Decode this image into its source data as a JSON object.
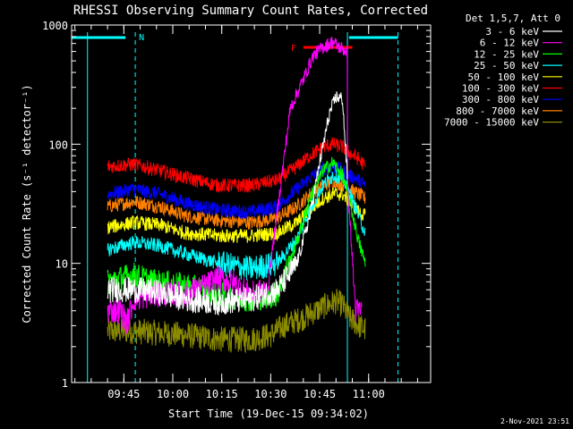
{
  "chart_data": {
    "type": "line",
    "title": "RHESSI Observing Summary Count Rates, Corrected",
    "ylabel": "Corrected Count Rate (s⁻¹ detector⁻¹)",
    "xlabel": "Start Time (19-Dec-15 09:34:02)",
    "yscale": "log",
    "ylim": [
      1,
      1000
    ],
    "xlim_minutes": [
      -5,
      105
    ],
    "y_ticks": [
      {
        "v": 1,
        "label": "1"
      },
      {
        "v": 10,
        "label": "10"
      },
      {
        "v": 100,
        "label": "100"
      },
      {
        "v": 1000,
        "label": "1000"
      }
    ],
    "x_ticks": [
      {
        "m": 11,
        "label": "09:45"
      },
      {
        "m": 26,
        "label": "10:00"
      },
      {
        "m": 41,
        "label": "10:15"
      },
      {
        "m": 56,
        "label": "10:30"
      },
      {
        "m": 71,
        "label": "10:45"
      },
      {
        "m": 86,
        "label": "11:00"
      }
    ],
    "legend_header": "Det 1,5,7, Att 0",
    "legend_position": "top-right",
    "markers": {
      "n_label": "N",
      "f_label": "F",
      "top_bars": [
        [
          -5,
          11.5
        ],
        [
          80,
          95
        ]
      ],
      "n_vline": 14.5,
      "right_vlines": [
        79.5,
        95
      ],
      "f_bar": [
        66,
        81
      ],
      "f_bar_y": 650
    },
    "series": [
      {
        "name": "3 - 6 keV",
        "color": "#ffffff",
        "points": [
          [
            6,
            6
          ],
          [
            14,
            6
          ],
          [
            20,
            5.8
          ],
          [
            30,
            5
          ],
          [
            40,
            4.7
          ],
          [
            50,
            5
          ],
          [
            58,
            6
          ],
          [
            60,
            7
          ],
          [
            64,
            10
          ],
          [
            68,
            25
          ],
          [
            71,
            70
          ],
          [
            74,
            180
          ],
          [
            76,
            250
          ],
          [
            78,
            240
          ],
          [
            79.5,
            50
          ],
          [
            79.5,
            20
          ]
        ]
      },
      {
        "name": "6 - 12 keV",
        "color": "#ff00ff",
        "points": [
          [
            6,
            4
          ],
          [
            10,
            4
          ],
          [
            12,
            3.2
          ],
          [
            14,
            5
          ],
          [
            20,
            5.5
          ],
          [
            30,
            5.5
          ],
          [
            36,
            6.5
          ],
          [
            40,
            7.5
          ],
          [
            45,
            6.8
          ],
          [
            50,
            5.5
          ],
          [
            55,
            6
          ],
          [
            62,
            200
          ],
          [
            66,
            350
          ],
          [
            69,
            550
          ],
          [
            72,
            650
          ],
          [
            75,
            720
          ],
          [
            77,
            650
          ],
          [
            79.5,
            600
          ],
          [
            79.5,
            50
          ],
          [
            82,
            4
          ],
          [
            84,
            4
          ]
        ]
      },
      {
        "name": "12 - 25 keV",
        "color": "#00ff00",
        "points": [
          [
            6,
            7
          ],
          [
            14,
            8
          ],
          [
            20,
            7
          ],
          [
            30,
            6.5
          ],
          [
            40,
            5.5
          ],
          [
            50,
            5
          ],
          [
            58,
            5.5
          ],
          [
            64,
            15
          ],
          [
            68,
            35
          ],
          [
            72,
            60
          ],
          [
            75,
            70
          ],
          [
            78,
            55
          ],
          [
            80,
            35
          ],
          [
            83,
            15
          ],
          [
            85,
            10
          ]
        ]
      },
      {
        "name": "25 - 50 keV",
        "color": "#00ffff",
        "points": [
          [
            6,
            13
          ],
          [
            14,
            15
          ],
          [
            22,
            14
          ],
          [
            30,
            12
          ],
          [
            40,
            10
          ],
          [
            50,
            9
          ],
          [
            58,
            10
          ],
          [
            64,
            16
          ],
          [
            68,
            28
          ],
          [
            72,
            45
          ],
          [
            75,
            55
          ],
          [
            78,
            52
          ],
          [
            80,
            40
          ],
          [
            83,
            25
          ],
          [
            85,
            18
          ]
        ]
      },
      {
        "name": "50 - 100 keV",
        "color": "#ffff00",
        "points": [
          [
            6,
            20
          ],
          [
            14,
            22
          ],
          [
            22,
            21
          ],
          [
            30,
            18
          ],
          [
            40,
            17
          ],
          [
            50,
            17
          ],
          [
            58,
            18
          ],
          [
            64,
            22
          ],
          [
            68,
            28
          ],
          [
            72,
            35
          ],
          [
            75,
            38
          ],
          [
            78,
            38
          ],
          [
            80,
            33
          ],
          [
            83,
            27
          ],
          [
            85,
            25
          ]
        ]
      },
      {
        "name": "100 - 300 keV",
        "color": "#ff0000",
        "points": [
          [
            6,
            65
          ],
          [
            14,
            68
          ],
          [
            22,
            60
          ],
          [
            30,
            52
          ],
          [
            40,
            45
          ],
          [
            50,
            45
          ],
          [
            58,
            50
          ],
          [
            64,
            65
          ],
          [
            68,
            80
          ],
          [
            72,
            95
          ],
          [
            75,
            100
          ],
          [
            78,
            95
          ],
          [
            80,
            85
          ],
          [
            83,
            75
          ],
          [
            85,
            65
          ]
        ]
      },
      {
        "name": "300 - 800 keV",
        "color": "#0000ff",
        "points": [
          [
            6,
            38
          ],
          [
            14,
            42
          ],
          [
            22,
            38
          ],
          [
            30,
            32
          ],
          [
            40,
            28
          ],
          [
            50,
            27
          ],
          [
            58,
            30
          ],
          [
            64,
            42
          ],
          [
            68,
            52
          ],
          [
            72,
            62
          ],
          [
            75,
            65
          ],
          [
            78,
            60
          ],
          [
            80,
            55
          ],
          [
            83,
            50
          ],
          [
            85,
            45
          ]
        ]
      },
      {
        "name": "800 - 7000 keV",
        "color": "#ff8000",
        "points": [
          [
            6,
            30
          ],
          [
            14,
            33
          ],
          [
            22,
            30
          ],
          [
            30,
            25
          ],
          [
            40,
            23
          ],
          [
            50,
            22
          ],
          [
            58,
            24
          ],
          [
            64,
            30
          ],
          [
            68,
            38
          ],
          [
            72,
            45
          ],
          [
            75,
            48
          ],
          [
            78,
            46
          ],
          [
            80,
            42
          ],
          [
            83,
            38
          ],
          [
            85,
            35
          ]
        ]
      },
      {
        "name": "7000 - 15000 keV",
        "color": "#8b8b00",
        "points": [
          [
            6,
            2.7
          ],
          [
            14,
            2.7
          ],
          [
            22,
            2.6
          ],
          [
            30,
            2.5
          ],
          [
            40,
            2.3
          ],
          [
            50,
            2.3
          ],
          [
            56,
            2.5
          ],
          [
            60,
            3
          ],
          [
            66,
            3.5
          ],
          [
            72,
            4.3
          ],
          [
            76,
            4.8
          ],
          [
            78,
            4.5
          ],
          [
            80,
            3.5
          ],
          [
            83,
            3
          ],
          [
            85,
            2.8
          ]
        ]
      }
    ]
  },
  "timestamp": "2-Nov-2021 23:51"
}
